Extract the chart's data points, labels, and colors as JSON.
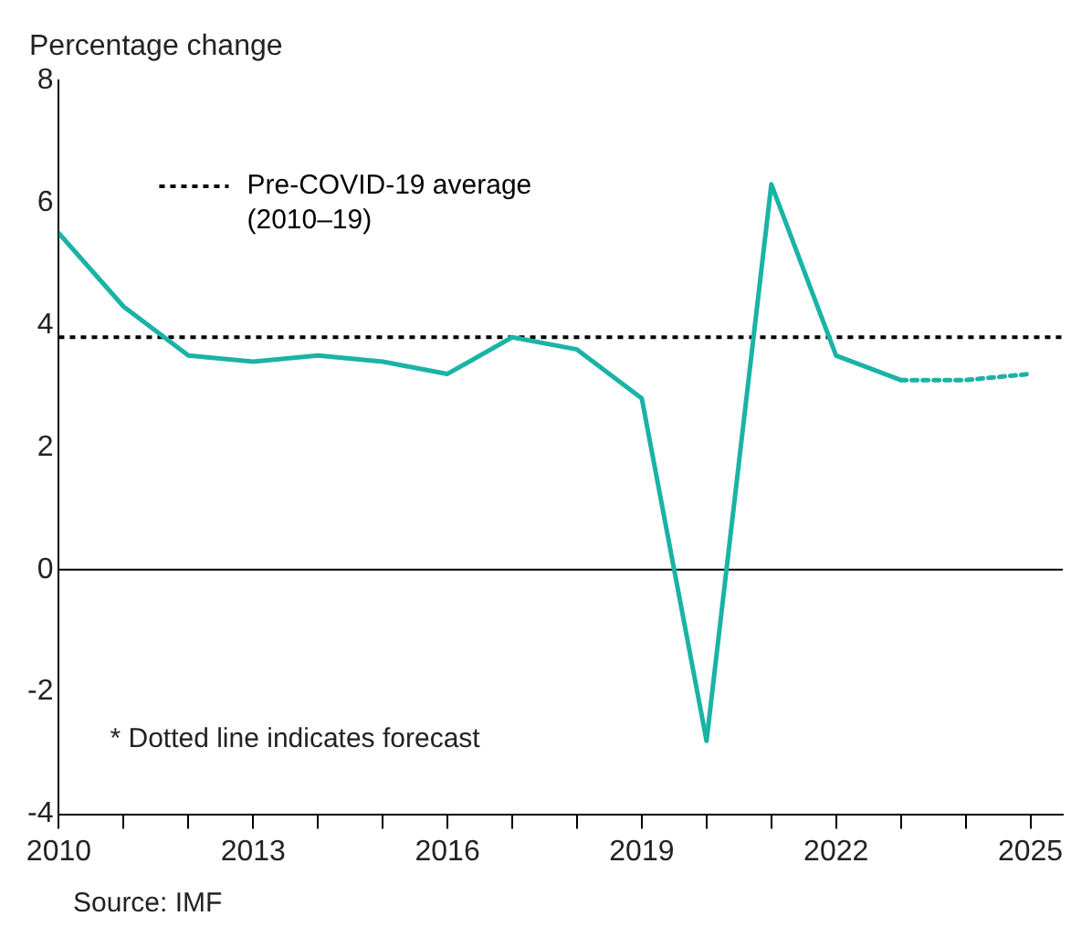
{
  "chart_data": {
    "type": "line",
    "ylabel": "Percentage change",
    "xlim": [
      2010,
      2025.5
    ],
    "xticks": [
      2010,
      {
        "value": 2011,
        "label": null
      },
      {
        "value": 2012,
        "label": null
      },
      2013,
      {
        "value": 2014,
        "label": null
      },
      {
        "value": 2015,
        "label": null
      },
      2016,
      {
        "value": 2017,
        "label": null
      },
      {
        "value": 2018,
        "label": null
      },
      2019,
      {
        "value": 2020,
        "label": null
      },
      {
        "value": 2021,
        "label": null
      },
      2022,
      {
        "value": 2023,
        "label": null
      },
      {
        "value": 2024,
        "label": null
      },
      2025
    ],
    "ylim": [
      -4,
      8
    ],
    "yticks": [
      -4,
      -2,
      0,
      2,
      4,
      6,
      8
    ],
    "grid": false,
    "legend": "top left",
    "marker": "none",
    "series": [
      {
        "color": "#1ab3a6",
        "line_style": "solid",
        "x": [
          2010,
          2011,
          2012,
          2013,
          2014,
          2015,
          2016,
          2017,
          2018,
          2019,
          2020,
          2021,
          2022,
          2023
        ],
        "values": [
          5.5,
          4.3,
          3.5,
          3.4,
          3.5,
          3.4,
          3.2,
          3.8,
          3.6,
          2.8,
          -2.8,
          6.3,
          3.5,
          3.1
        ]
      },
      {
        "color": "#1ab3a6",
        "line_style": "dotted",
        "x": [
          2023,
          2024,
          2025
        ],
        "values": [
          3.1,
          3.1,
          3.2
        ]
      }
    ],
    "ref_lines": [
      {
        "axis": "y",
        "value": 3.8,
        "label": "Pre-COVID-19 average (2010–19)",
        "color": "#000000",
        "line_style": "dotted"
      },
      {
        "axis": "y",
        "value": 0,
        "color": "#000000",
        "line_style": "solid"
      }
    ],
    "annotations": [
      "* Dotted line indicates forecast",
      "Source: IMF"
    ]
  }
}
